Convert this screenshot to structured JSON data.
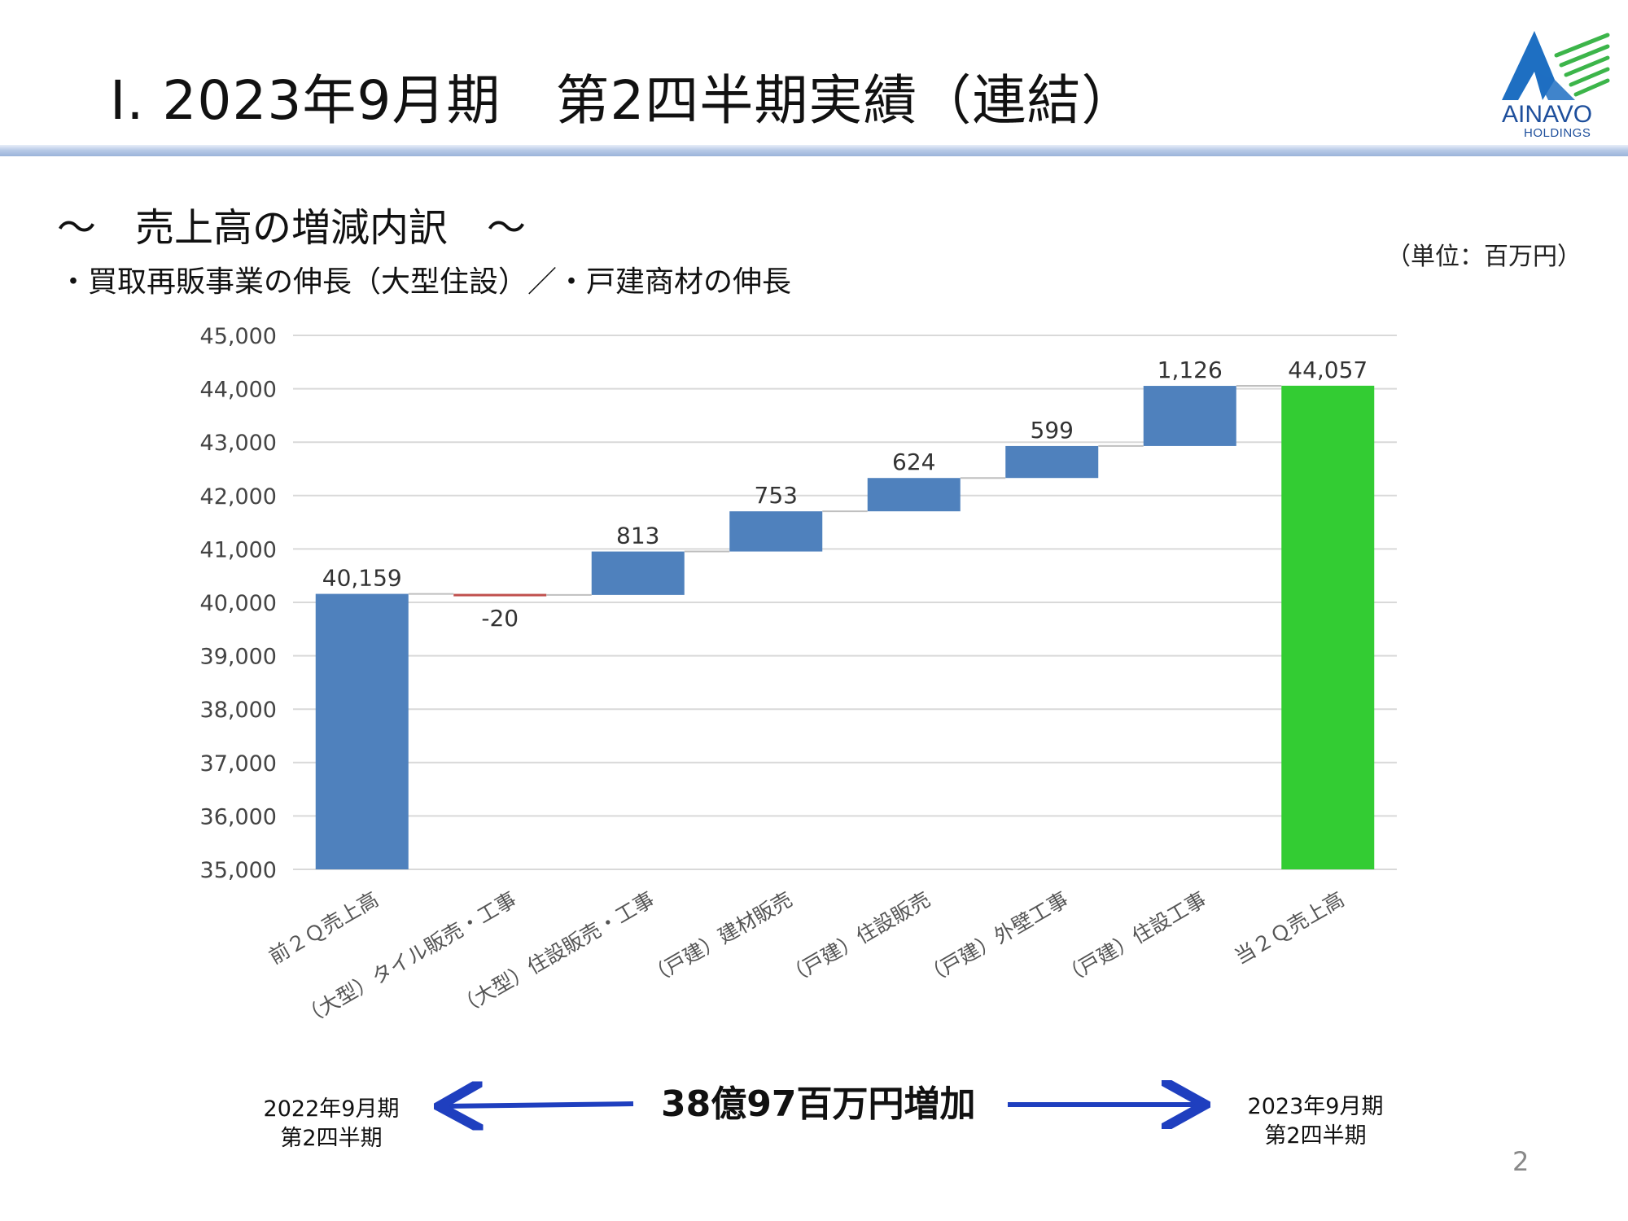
{
  "header": {
    "title": "Ⅰ. 2023年9月期　第2四半期実績（連結）",
    "logo_name": "AINAVO",
    "logo_sub": "HOLDINGS",
    "logo_colors": {
      "primary": "#1e6fc2",
      "accent": "#3cb54a"
    }
  },
  "section": {
    "subtitle": "～　売上高の増減内訳　～",
    "bullets": "・買取再販事業の伸長（大型住設）／・戸建商材の伸長",
    "unit": "（単位：百万円）"
  },
  "chart_data": {
    "type": "waterfall",
    "categories": [
      "前２Ｑ売上高",
      "（大型）タイル販売・工事",
      "（大型）住設販売・工事",
      "（戸建）建材販売",
      "（戸建）住設販売",
      "（戸建）外壁工事",
      "（戸建）住設工事",
      "当２Ｑ売上高"
    ],
    "values": [
      40159,
      -20,
      813,
      753,
      624,
      599,
      1126,
      44057
    ],
    "kinds": [
      "total",
      "delta",
      "delta",
      "delta",
      "delta",
      "delta",
      "delta",
      "total"
    ],
    "data_labels": [
      "40,159",
      "-20",
      "813",
      "753",
      "624",
      "599",
      "1,126",
      "44,057"
    ],
    "ylim": [
      35000,
      45000
    ],
    "yticks": [
      35000,
      36000,
      37000,
      38000,
      39000,
      40000,
      41000,
      42000,
      43000,
      44000,
      45000
    ],
    "ytick_labels": [
      "35,000",
      "36,000",
      "37,000",
      "38,000",
      "39,000",
      "40,000",
      "41,000",
      "42,000",
      "43,000",
      "44,000",
      "45,000"
    ],
    "colors": {
      "increase": "#4f81bd",
      "decrease": "#c0504d",
      "final_total": "#33cc33",
      "start_total": "#4f81bd",
      "grid": "#d9d9d9",
      "connector": "#bfbfbf"
    },
    "grid": true,
    "legend": "none"
  },
  "footer": {
    "left_period_line1": "2022年9月期",
    "left_period_line2": "第2四半期",
    "right_period_line1": "2023年9月期",
    "right_period_line2": "第2四半期",
    "increase_text": "38億97百万円増加",
    "arrow_color": "#1f3fbf",
    "page_number": "2"
  }
}
